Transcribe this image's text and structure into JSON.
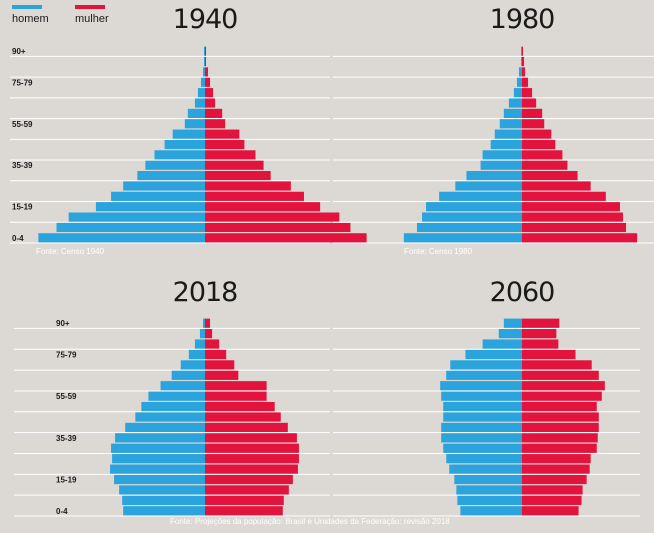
{
  "legend": {
    "male_label": "homem",
    "female_label": "mulher",
    "male_color": "#2ba3dc",
    "female_color": "#e2133c"
  },
  "chart_data": [
    {
      "type": "bar",
      "title": "1940",
      "source": "Fonte: Censo 1940",
      "age_groups": [
        "0-4",
        "5-9",
        "10-14",
        "15-19",
        "20-24",
        "25-29",
        "30-34",
        "35-39",
        "40-44",
        "45-49",
        "50-54",
        "55-59",
        "60-64",
        "65-69",
        "70-74",
        "75-79",
        "80-84",
        "85-89",
        "90+"
      ],
      "age_tick_labels": [
        "90+",
        "75-79",
        "55-59",
        "35-39",
        "15-19",
        "0-4"
      ],
      "series": [
        {
          "name": "homem",
          "values": [
            16.5,
            14.7,
            13.5,
            10.8,
            9.3,
            8.1,
            6.7,
            5.9,
            5.0,
            4.0,
            3.2,
            2.0,
            1.7,
            1.0,
            0.7,
            0.4,
            0.2,
            0.1,
            0.1
          ]
        },
        {
          "name": "mulher",
          "values": [
            16.0,
            14.4,
            13.3,
            11.4,
            9.8,
            8.5,
            6.5,
            5.8,
            5.0,
            3.9,
            3.4,
            2.0,
            1.7,
            1.0,
            0.8,
            0.5,
            0.3,
            0.1,
            0.1
          ]
        }
      ]
    },
    {
      "type": "bar",
      "title": "1980",
      "source": "Fonte: Censo 1980",
      "age_groups": [
        "0-4",
        "5-9",
        "10-14",
        "15-19",
        "20-24",
        "25-29",
        "30-34",
        "35-39",
        "40-44",
        "45-49",
        "50-54",
        "55-59",
        "60-64",
        "65-69",
        "70-74",
        "75-79",
        "80-84",
        "85-89",
        "90+"
      ],
      "age_tick_labels": [
        "90+",
        "75-79",
        "55-59",
        "35-39",
        "15-19",
        "0-4"
      ],
      "series": [
        {
          "name": "homem",
          "values": [
            11.7,
            10.4,
            9.9,
            9.5,
            8.2,
            6.6,
            5.5,
            4.1,
            3.9,
            3.1,
            2.7,
            2.2,
            1.8,
            1.3,
            0.8,
            0.5,
            0.3,
            0.1,
            0.1
          ]
        },
        {
          "name": "mulher",
          "values": [
            11.4,
            10.3,
            10.0,
            9.7,
            8.3,
            6.8,
            5.5,
            4.5,
            4.0,
            3.3,
            2.9,
            2.2,
            2.0,
            1.4,
            1.0,
            0.6,
            0.3,
            0.2,
            0.1
          ]
        }
      ]
    },
    {
      "type": "bar",
      "title": "2018",
      "source": "Fonte: Projeções da população: Brasil e Unidades da Federação: revisão 2018",
      "age_groups": [
        "0-4",
        "5-9",
        "10-14",
        "15-19",
        "20-24",
        "25-29",
        "30-34",
        "35-39",
        "40-44",
        "45-49",
        "50-54",
        "55-59",
        "60-64",
        "65-69",
        "70-74",
        "75-79",
        "80-84",
        "85-89",
        "90+"
      ],
      "age_tick_labels": [
        "90+",
        "75-79",
        "55-59",
        "35-39",
        "15-19",
        "0-4"
      ],
      "series": [
        {
          "name": "homem",
          "values": [
            8.1,
            8.2,
            8.5,
            9.0,
            9.4,
            9.2,
            9.3,
            8.9,
            7.9,
            6.9,
            6.3,
            5.6,
            4.4,
            3.3,
            2.4,
            1.6,
            1.0,
            0.5,
            0.2
          ]
        },
        {
          "name": "mulher",
          "values": [
            7.7,
            7.8,
            8.3,
            8.7,
            9.2,
            9.3,
            9.3,
            9.1,
            8.2,
            7.5,
            6.9,
            6.1,
            6.1,
            3.3,
            2.9,
            2.1,
            1.4,
            0.7,
            0.5
          ]
        }
      ]
    },
    {
      "type": "bar",
      "title": "2060",
      "source": "",
      "age_groups": [
        "0-4",
        "5-9",
        "10-14",
        "15-19",
        "20-24",
        "25-29",
        "30-34",
        "35-39",
        "40-44",
        "45-49",
        "50-54",
        "55-59",
        "60-64",
        "65-69",
        "70-74",
        "75-79",
        "80-84",
        "85-89",
        "90+"
      ],
      "age_tick_labels": [],
      "series": [
        {
          "name": "homem",
          "values": [
            6.1,
            6.4,
            6.5,
            6.7,
            7.2,
            7.5,
            7.8,
            8.0,
            8.0,
            7.8,
            7.8,
            8.0,
            8.1,
            7.5,
            7.1,
            5.6,
            3.9,
            2.3,
            1.8
          ]
        },
        {
          "name": "mulher",
          "values": [
            5.6,
            5.9,
            6.0,
            6.4,
            6.7,
            6.8,
            7.4,
            7.5,
            7.6,
            7.6,
            7.4,
            7.9,
            8.2,
            7.6,
            6.9,
            5.3,
            3.6,
            3.4,
            3.7
          ]
        }
      ]
    }
  ]
}
